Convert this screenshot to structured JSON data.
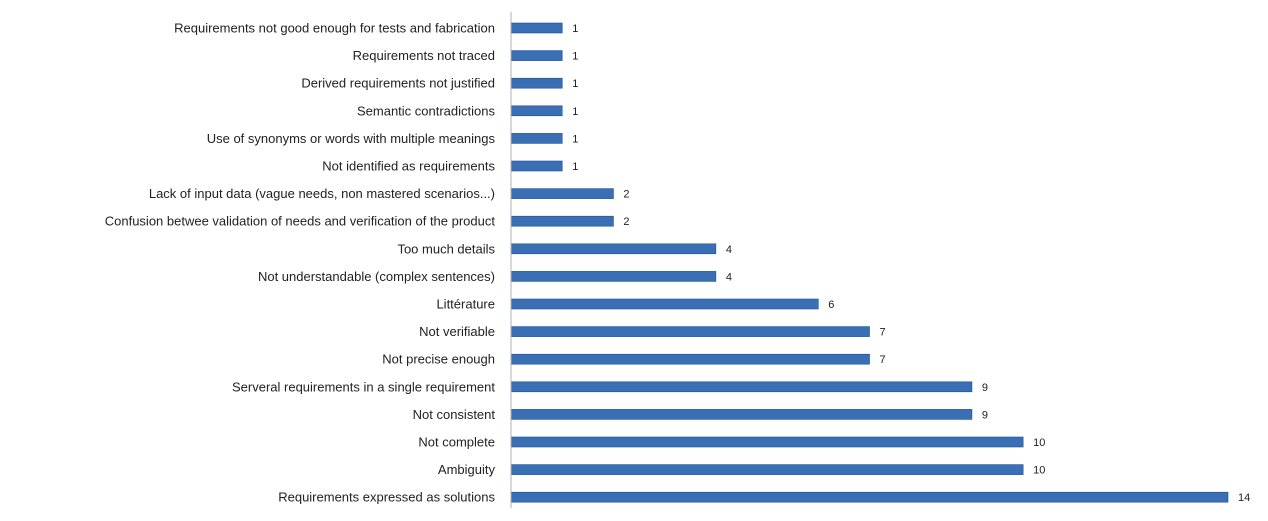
{
  "chart_data": {
    "type": "bar",
    "orientation": "horizontal",
    "categories": [
      "Requirements not good enough for tests and fabrication",
      "Requirements not traced",
      "Derived requirements not justified",
      "Semantic contradictions",
      "Use of synonyms or words with multiple meanings",
      "Not identified as requirements",
      "Lack of input data (vague needs, non mastered scenarios...)",
      "Confusion betwee validation of needs and verification of the product",
      "Too much details",
      "Not understandable (complex sentences)",
      "Littérature",
      "Not verifiable",
      "Not precise enough",
      "Serveral requirements in a single requirement",
      "Not consistent",
      "Not complete",
      "Ambiguity",
      "Requirements expressed as solutions"
    ],
    "values": [
      1,
      1,
      1,
      1,
      1,
      1,
      2,
      2,
      4,
      4,
      6,
      7,
      7,
      9,
      9,
      10,
      10,
      14
    ],
    "xlim": [
      0,
      14
    ],
    "grid": false,
    "legend": "none",
    "bar_color": "#3a6fb5",
    "bar_edge_color": "#1f4f8f",
    "axis_color": "#b0b0b0"
  }
}
